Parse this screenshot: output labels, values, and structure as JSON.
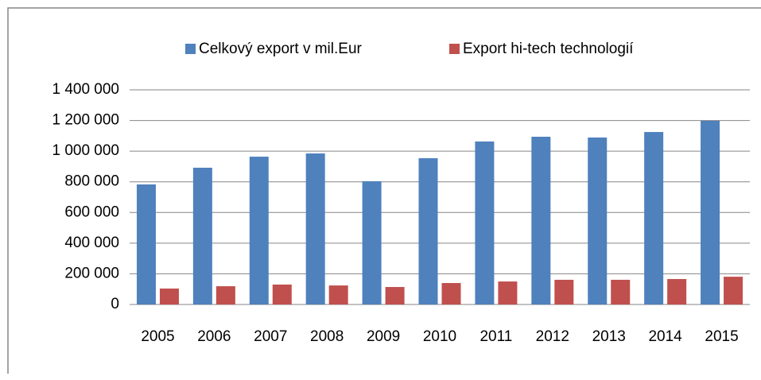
{
  "chart_data": {
    "type": "bar",
    "categories": [
      "2005",
      "2006",
      "2007",
      "2008",
      "2009",
      "2010",
      "2011",
      "2012",
      "2013",
      "2014",
      "2015"
    ],
    "series": [
      {
        "name": "Celkový export v mil.Eur",
        "color": "#4f81bd",
        "values": [
          783000,
          892000,
          964000,
          985000,
          804000,
          954000,
          1063000,
          1094000,
          1089000,
          1125000,
          1198000
        ]
      },
      {
        "name": "Export hi-tech technologií",
        "color": "#c0504d",
        "values": [
          104000,
          119000,
          130000,
          124000,
          114000,
          140000,
          150000,
          161000,
          161000,
          166000,
          181000
        ]
      }
    ],
    "ylim": [
      0,
      1400000
    ],
    "yticks": [
      0,
      {
        "value": 200000,
        "label": "200 000"
      },
      {
        "value": 400000,
        "label": "400 000"
      },
      {
        "value": 600000,
        "label": "600 000"
      },
      {
        "value": 800000,
        "label": "800 000"
      },
      {
        "value": 1000000,
        "label": "1 000 000"
      },
      {
        "value": 1200000,
        "label": "1 200 000"
      },
      {
        "value": 1400000,
        "label": "1 400 000"
      }
    ],
    "grid": true,
    "legend": "top"
  }
}
